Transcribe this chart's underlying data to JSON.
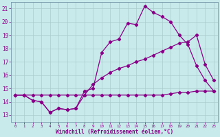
{
  "background_color": "#c8eaea",
  "grid_color": "#aacccc",
  "line_color": "#880088",
  "xlabel": "Windchill (Refroidissement éolien,°C)",
  "ylabel_ticks": [
    13,
    14,
    15,
    16,
    17,
    18,
    19,
    20,
    21
  ],
  "xlim": [
    -0.5,
    23.5
  ],
  "ylim": [
    12.5,
    21.5
  ],
  "line1_x": [
    0,
    1,
    2,
    3,
    4,
    5,
    6,
    7,
    8,
    9,
    10,
    11,
    12,
    13,
    14,
    15,
    16,
    17,
    18,
    19,
    20,
    21,
    22,
    23
  ],
  "line1_y": [
    14.5,
    14.5,
    14.1,
    14.0,
    13.2,
    13.5,
    13.4,
    13.5,
    14.8,
    15.0,
    17.7,
    18.5,
    18.7,
    19.9,
    19.8,
    21.2,
    20.7,
    20.4,
    20.0,
    19.0,
    18.3,
    16.7,
    15.6,
    14.8
  ],
  "line2_x": [
    0,
    1,
    2,
    3,
    4,
    5,
    6,
    7,
    8,
    9,
    10,
    11,
    12,
    13,
    14,
    15,
    16,
    17,
    18,
    19,
    20,
    21,
    22,
    23
  ],
  "line2_y": [
    14.5,
    14.5,
    14.1,
    14.0,
    13.2,
    13.5,
    13.4,
    13.5,
    14.5,
    15.3,
    15.8,
    16.2,
    16.5,
    16.7,
    17.0,
    17.2,
    17.5,
    17.8,
    18.1,
    18.4,
    18.5,
    19.0,
    16.8,
    15.6
  ],
  "line3_x": [
    0,
    1,
    2,
    3,
    4,
    5,
    6,
    7,
    8,
    9,
    10,
    11,
    12,
    13,
    14,
    15,
    16,
    17,
    18,
    19,
    20,
    21,
    22,
    23
  ],
  "line3_y": [
    14.5,
    14.5,
    14.5,
    14.5,
    14.5,
    14.5,
    14.5,
    14.5,
    14.5,
    14.5,
    14.5,
    14.5,
    14.5,
    14.5,
    14.5,
    14.5,
    14.5,
    14.5,
    14.6,
    14.7,
    14.7,
    14.8,
    14.8,
    14.8
  ]
}
